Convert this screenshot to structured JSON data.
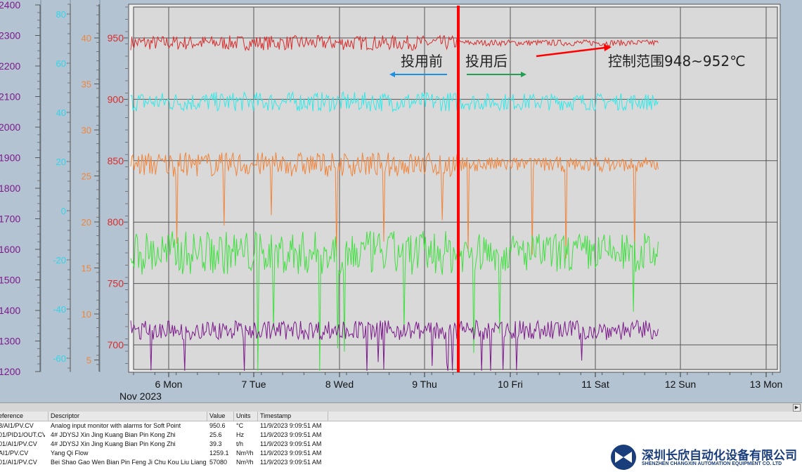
{
  "colors": {
    "temperature": "#d82c2c",
    "frequency": "#f0853c",
    "output": "#35e8e8",
    "flow_cyan": "#2ed7ea",
    "flow_green": "#3fe03f",
    "purple_series": "#7c1a8c",
    "divider": "#ff0000",
    "arrow_blue": "#1e90e0",
    "arrow_green": "#20a050",
    "plot_bg": "#d9d9d9",
    "frame_bg": "#b4c3d1"
  },
  "axes": {
    "purple": [
      "2400",
      "2300",
      "2200",
      "2100",
      "2000",
      "1900",
      "1800",
      "1700",
      "1600",
      "1500",
      "1400",
      "1300",
      "1200"
    ],
    "cyan": [
      "80",
      "60",
      "40",
      "20",
      "0",
      "-20",
      "-40",
      "-60"
    ],
    "orange": [
      "40",
      "35",
      "30",
      "25",
      "20",
      "15",
      "10",
      "5"
    ],
    "red": [
      "950",
      "900",
      "850",
      "800",
      "750",
      "700"
    ]
  },
  "x_axis": {
    "ticks": [
      "6 Mon",
      "7 Tue",
      "8 Wed",
      "9 Thu",
      "10 Fri",
      "11 Sat",
      "12 Sun",
      "13 Mon"
    ],
    "month": "Nov 2023"
  },
  "annotations": {
    "before": "投用前",
    "after": "投用后",
    "range": "控制范围948~952℃"
  },
  "table": {
    "headers": [
      "eference",
      "Descriptor",
      "Value",
      "Units",
      "Timestamp"
    ],
    "rows": [
      [
        "8/AI1/PV.CV",
        "Analog input monitor with alarms for Soft Point",
        "950.6",
        "°C",
        "11/9/2023 9:09:51 AM"
      ],
      [
        "01/PID1/OUT.CV",
        "4# JDYSJ Xin Jing Kuang Bian Pin Kong Zhi",
        "25.6",
        "Hz",
        "11/9/2023 9:09:51 AM"
      ],
      [
        "01/AI1/PV.CV",
        "4# JDYSJ Xin Jing Kuang Bian Pin Kong Zhi",
        "39.3",
        "t/h",
        "11/9/2023 9:09:51 AM"
      ],
      [
        "AI1/PV.CV",
        "Yang Qi Flow",
        "1259.1",
        "Nm³/h",
        "11/9/2023 9:09:51 AM"
      ],
      [
        "01/AI1/PV.CV",
        "Bei Shao Gao Wen Bian Pin Feng Ji Chu Kou Liu Liang",
        "57080",
        "Nm³/h",
        "11/9/2023 9:09:51 AM"
      ]
    ]
  },
  "watermark": {
    "cn": "深圳长欣自动化设备有限公司",
    "en": "SHENZHEN CHANGXIN AUTOMATION EQUIPMENT CO. LTD"
  },
  "scrollbar": {
    "arrow": "▶"
  },
  "chart_data": {
    "type": "line",
    "x_ticks": [
      "6 Mon",
      "7 Tue",
      "8 Wed",
      "9 Thu",
      "10 Fri",
      "11 Sat",
      "12 Sun",
      "13 Mon"
    ],
    "series": [
      {
        "axis": "red",
        "color": "#d82c2c",
        "base": 946,
        "noise_before": 6,
        "noise_after": 2.5
      },
      {
        "axis": "red",
        "color": "#35e8e8",
        "base": 898,
        "noise_before": 8,
        "noise_after": 7
      },
      {
        "axis": "red",
        "color": "#f0853c",
        "base": 847,
        "noise_before": 10,
        "noise_after": 6
      },
      {
        "axis": "red",
        "color": "#3fe03f",
        "base": 775,
        "noise_before": 18,
        "noise_after": 16
      },
      {
        "axis": "red",
        "color": "#7c1a8c",
        "base": 712,
        "noise_before": 8,
        "noise_after": 8
      }
    ]
  }
}
